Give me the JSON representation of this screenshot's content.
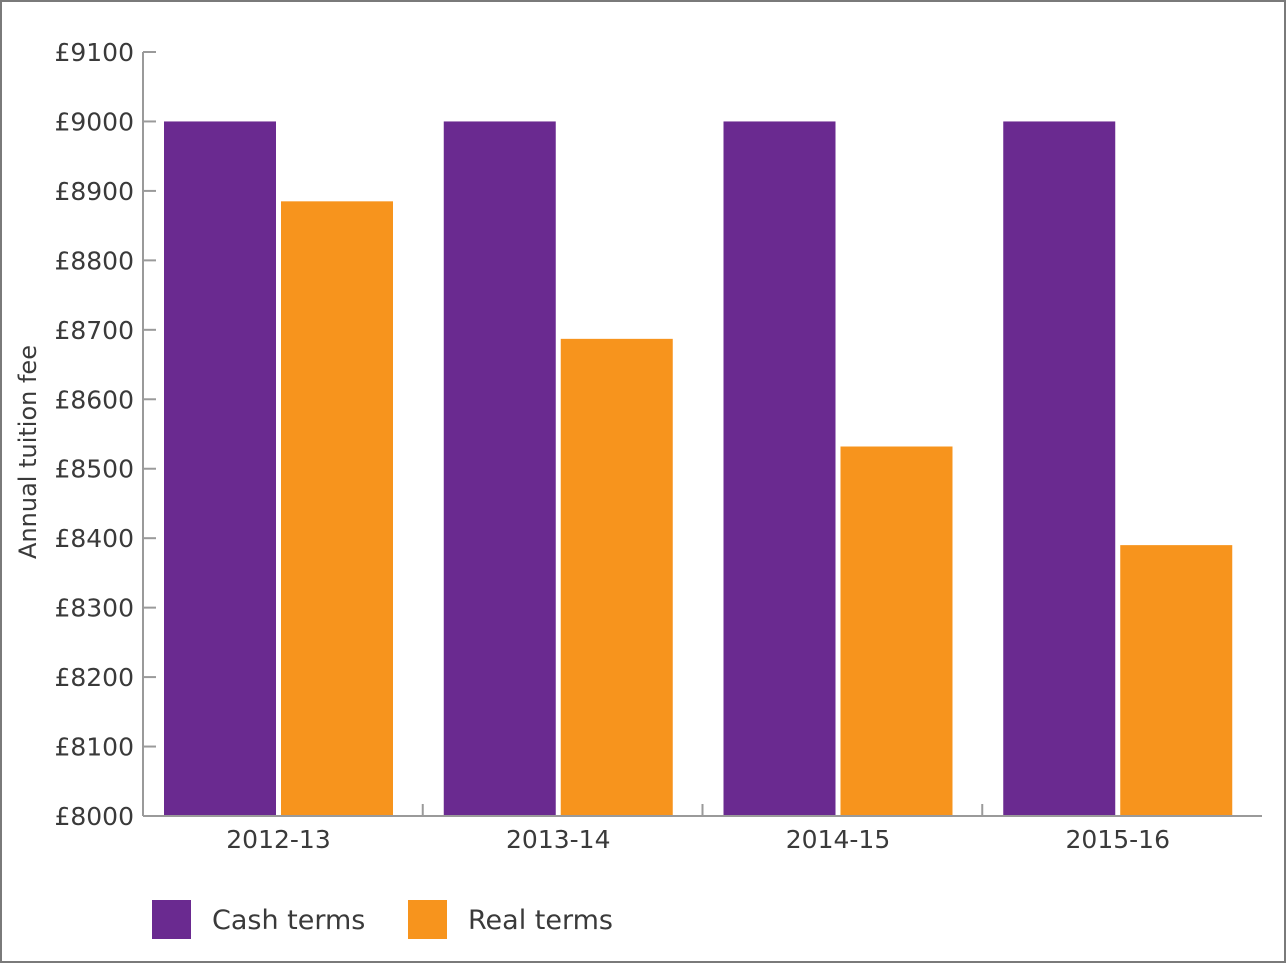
{
  "chart_data": {
    "type": "bar",
    "ylabel": "Annual tuition fee",
    "categories": [
      "2012-13",
      "2013-14",
      "2014-15",
      "2015-16"
    ],
    "ylim": [
      8000,
      9100
    ],
    "yticks": [
      "£8000",
      "£8100",
      "£8200",
      "£8300",
      "£8400",
      "£8500",
      "£8600",
      "£8700",
      "£8800",
      "£8900",
      "£9000",
      "£9100"
    ],
    "yticks_values": [
      8000,
      8100,
      8200,
      8300,
      8400,
      8500,
      8600,
      8700,
      8800,
      8900,
      9000,
      9100
    ],
    "series": [
      {
        "name": "Cash terms",
        "color": "#6a2a90",
        "values": [
          9000,
          9000,
          9000,
          9000
        ]
      },
      {
        "name": "Real terms",
        "color": "#f7941d",
        "values": [
          8885,
          8687,
          8532,
          8390
        ]
      }
    ],
    "legend": "bottom-left",
    "grid": false
  }
}
